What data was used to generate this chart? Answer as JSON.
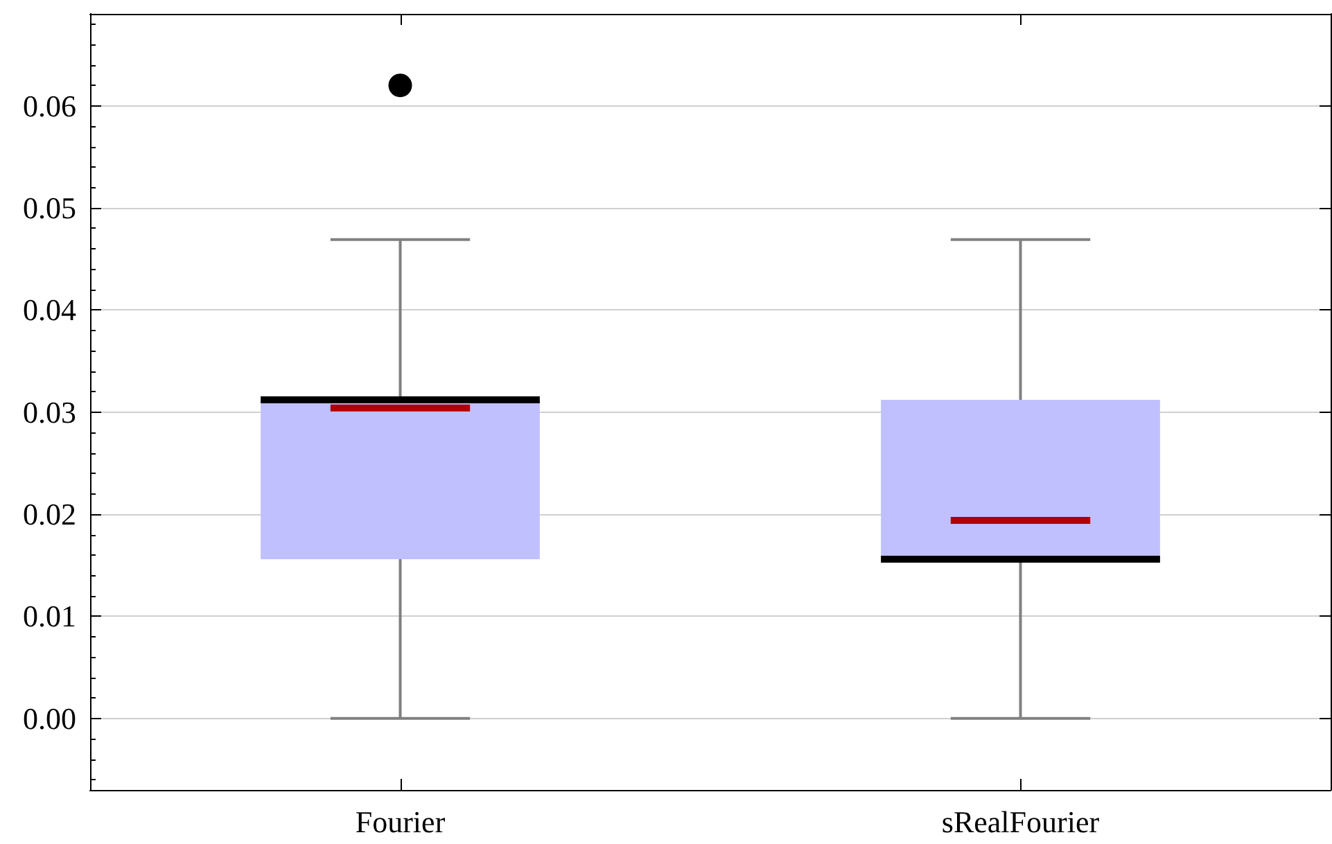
{
  "chart_data": {
    "type": "box",
    "categories": [
      "Fourier",
      "sRealFourier"
    ],
    "boxes": [
      {
        "low": 0,
        "q1": 0.0156,
        "median": 0.0312,
        "q3": 0.0312,
        "high": 0.0469,
        "mean": 0.0304,
        "outliers": [
          0.062
        ]
      },
      {
        "low": 0,
        "q1": 0.0156,
        "median": 0.0156,
        "q3": 0.0312,
        "high": 0.0469,
        "mean": 0.0194
      }
    ],
    "color": "#c0c0ff",
    "ylim": [
      -0.007,
      0.069
    ],
    "yticks": [
      {
        "value": 0,
        "label": "0.00"
      },
      {
        "value": 0.01,
        "label": "0.01"
      },
      {
        "value": 0.02,
        "label": "0.02"
      },
      {
        "value": 0.03,
        "label": "0.03"
      },
      {
        "value": 0.04,
        "label": "0.04"
      },
      {
        "value": 0.05,
        "label": "0.05"
      },
      {
        "value": 0.06,
        "label": "0.06"
      }
    ],
    "grid": "y",
    "marker": "circle"
  }
}
